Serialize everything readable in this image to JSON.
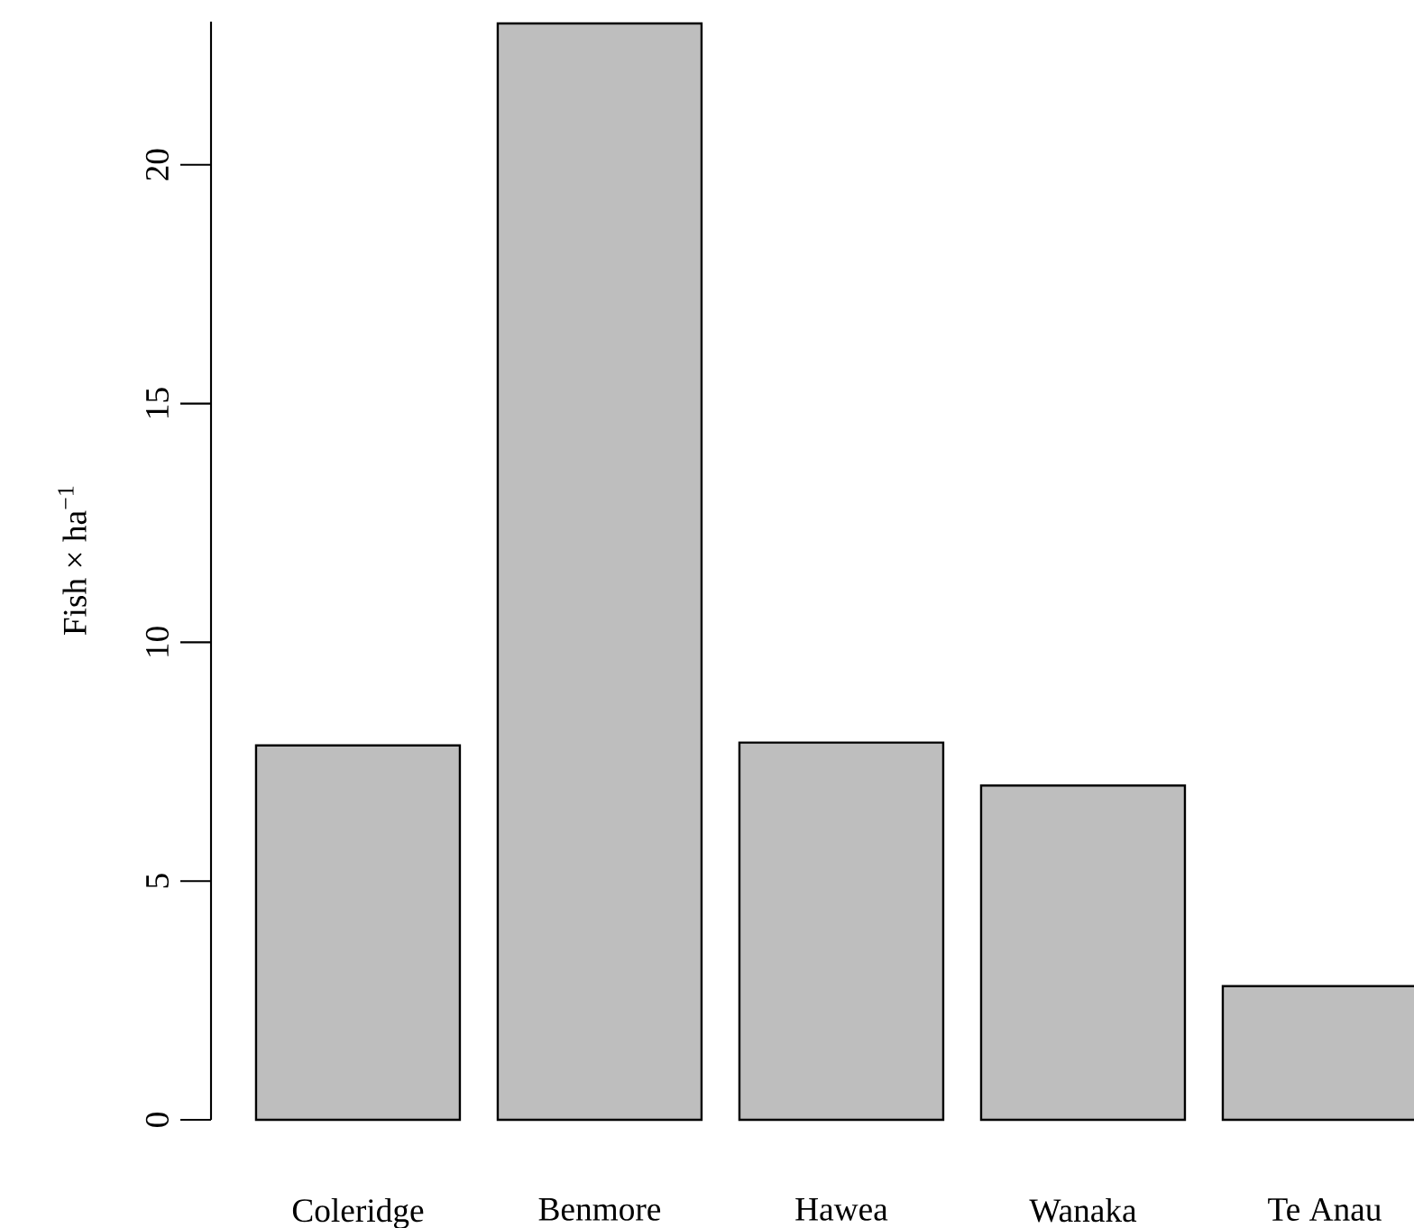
{
  "chart_data": {
    "type": "bar",
    "ylabel": "Fish × ha$^{−1}$",
    "categories": [
      "Coleridge",
      "Benmore",
      "Hawea",
      "Wanaka",
      "Te Anau"
    ],
    "values": [
      7.84,
      22.96,
      7.9,
      7.0,
      2.8
    ],
    "color": "#bebebe",
    "ylim": [
      0,
      23
    ],
    "yticks": [
      0,
      5,
      10,
      15,
      20
    ]
  }
}
